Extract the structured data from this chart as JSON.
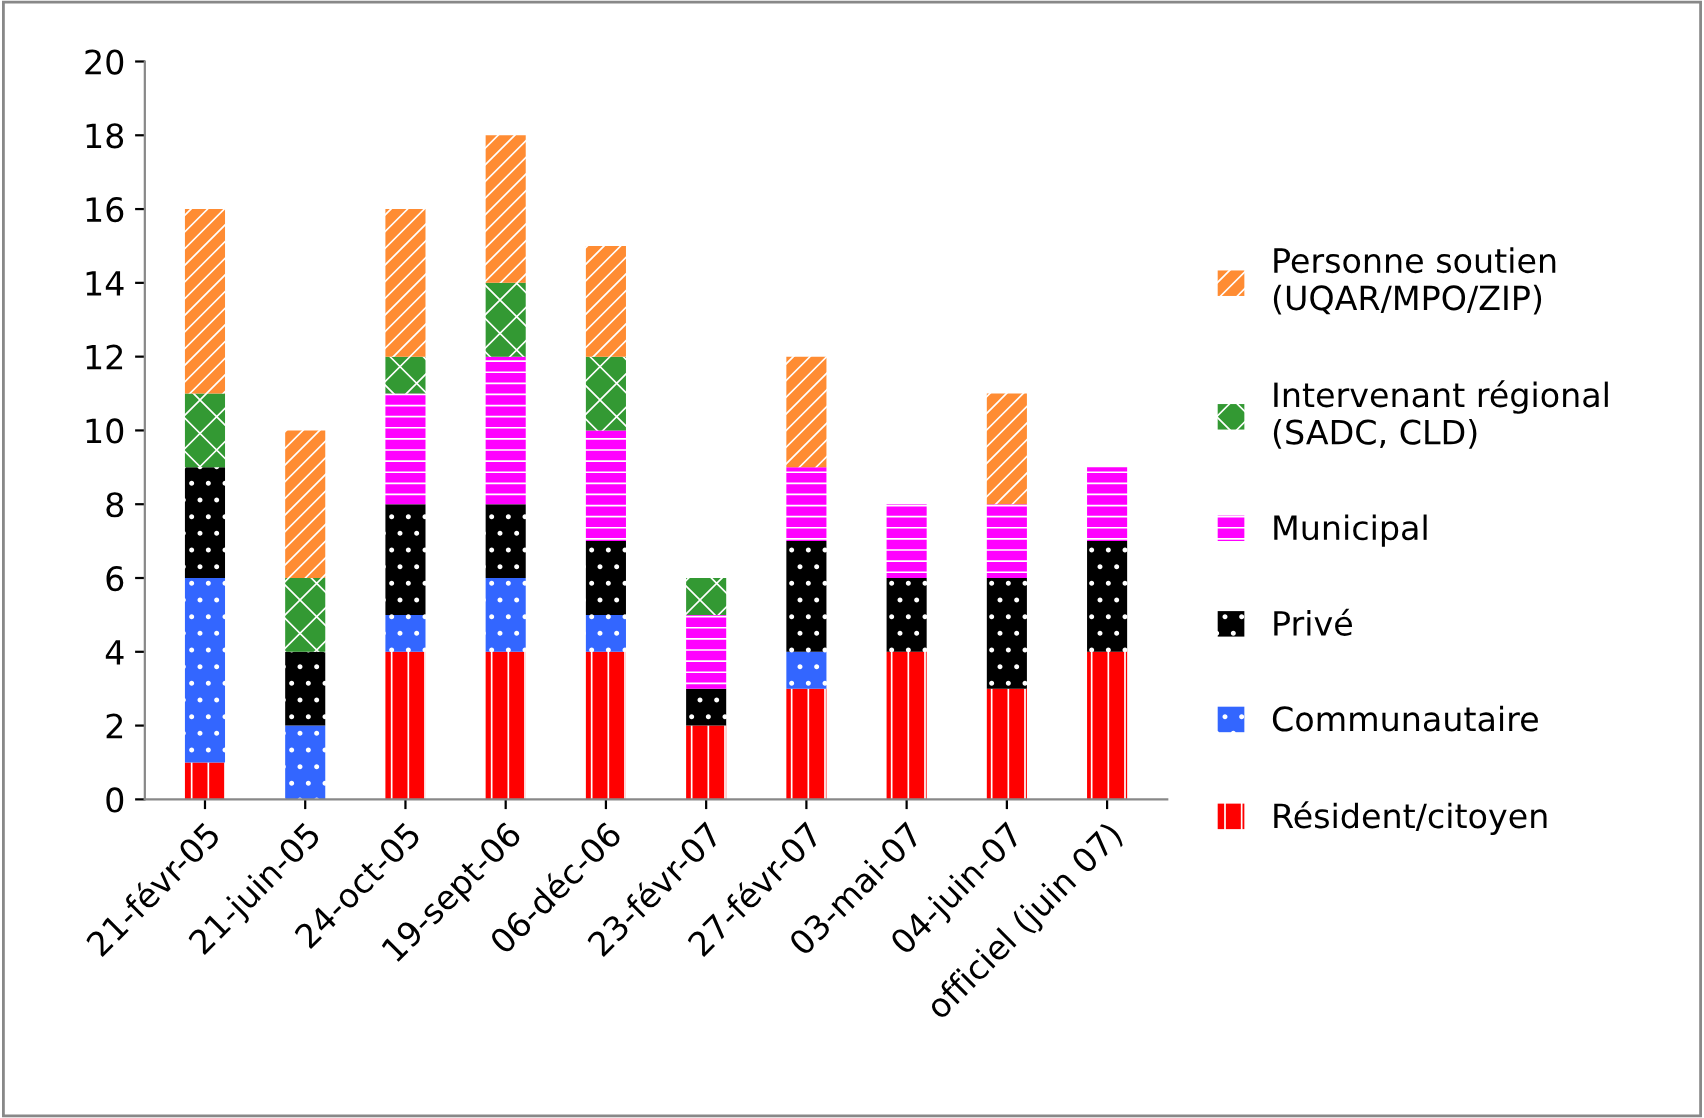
{
  "chart_data": {
    "type": "bar",
    "stacked": true,
    "categories": [
      "21-févr-05",
      "21-juin-05",
      "24-oct-05",
      "19-sept-06",
      "06-déc-06",
      "23-févr-07",
      "27-févr-07",
      "03-mai-07",
      "04-juin-07",
      "officiel (juin 07)"
    ],
    "ylim": [
      0,
      20
    ],
    "yticks": [
      0,
      2,
      4,
      6,
      8,
      10,
      12,
      14,
      16,
      18,
      20
    ],
    "grid": false,
    "legend": "right",
    "series": [
      {
        "name": "Résident/citoyen",
        "color": "#ff0000",
        "values": [
          1,
          0,
          4,
          4,
          4,
          2,
          3,
          4,
          3,
          4
        ]
      },
      {
        "name": "Communautaire",
        "color": "#3366ff",
        "values": [
          5,
          2,
          1,
          2,
          1,
          0,
          1,
          0,
          0,
          0
        ]
      },
      {
        "name": "Privé",
        "color": "#000000",
        "values": [
          3,
          2,
          3,
          2,
          2,
          1,
          3,
          2,
          3,
          3
        ]
      },
      {
        "name": "Municipal",
        "color": "#ff00ff",
        "values": [
          0,
          0,
          3,
          4,
          3,
          2,
          2,
          2,
          2,
          2
        ]
      },
      {
        "name": "Intervenant régional\n(SADC, CLD)",
        "color": "#339933",
        "values": [
          2,
          2,
          1,
          2,
          2,
          1,
          0,
          0,
          0,
          0
        ]
      },
      {
        "name": "Personne soutien\n(UQAR/MPO/ZIP)",
        "color": "#ff8c33",
        "values": [
          5,
          4,
          4,
          4,
          3,
          0,
          3,
          0,
          3,
          0
        ]
      }
    ]
  }
}
